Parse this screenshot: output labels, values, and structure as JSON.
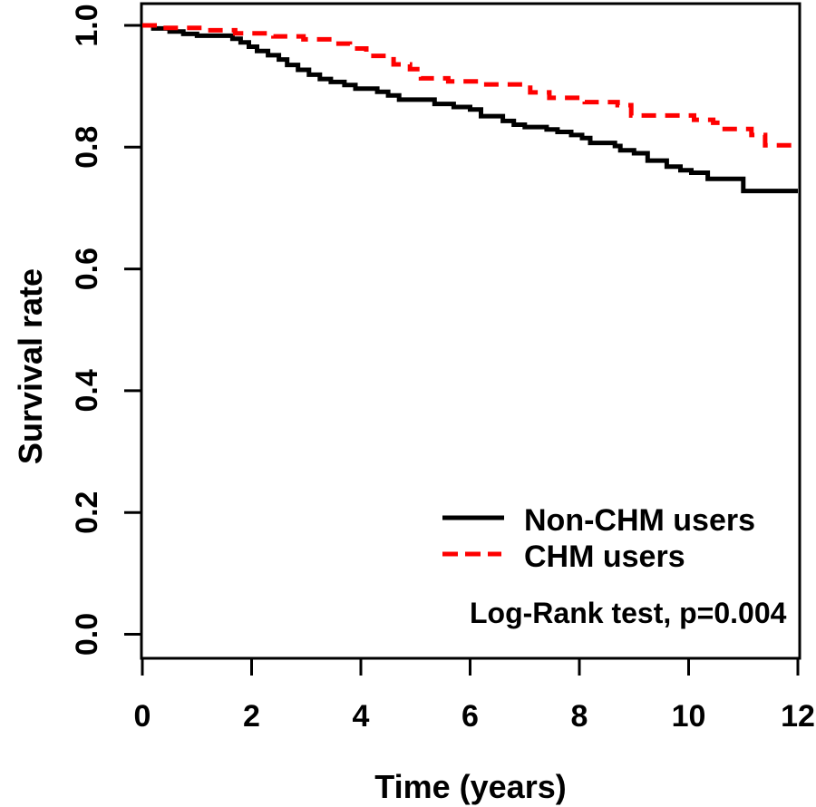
{
  "chart_data": {
    "type": "line",
    "variant": "kaplan_meier_step",
    "title": "",
    "xlabel": "Time (years)",
    "ylabel": "Survival rate",
    "xlim": [
      0,
      12
    ],
    "ylim": [
      0.0,
      1.0
    ],
    "x_ticks": [
      0,
      2,
      4,
      6,
      8,
      10,
      12
    ],
    "y_ticks": [
      0.0,
      0.2,
      0.4,
      0.6,
      0.8,
      1.0
    ],
    "y_tick_labels": [
      "0.0",
      "0.2",
      "0.4",
      "0.6",
      "0.8",
      "1.0"
    ],
    "grid": false,
    "legend_position": "inside-bottom-right",
    "annotation": "Log-Rank test, p=0.004",
    "series": [
      {
        "name": "Non-CHM users",
        "color": "#000000",
        "style": "solid",
        "end_time": 12,
        "steps": [
          [
            0,
            1.0
          ],
          [
            0.2,
            0.995
          ],
          [
            0.5,
            0.99
          ],
          [
            0.75,
            0.986
          ],
          [
            1.0,
            0.983
          ],
          [
            1.65,
            0.978
          ],
          [
            1.8,
            0.972
          ],
          [
            1.95,
            0.965
          ],
          [
            2.1,
            0.958
          ],
          [
            2.3,
            0.951
          ],
          [
            2.5,
            0.944
          ],
          [
            2.65,
            0.935
          ],
          [
            2.85,
            0.927
          ],
          [
            3.05,
            0.919
          ],
          [
            3.25,
            0.912
          ],
          [
            3.45,
            0.907
          ],
          [
            3.7,
            0.902
          ],
          [
            3.9,
            0.896
          ],
          [
            4.3,
            0.891
          ],
          [
            4.5,
            0.885
          ],
          [
            4.7,
            0.878
          ],
          [
            5.35,
            0.871
          ],
          [
            5.7,
            0.866
          ],
          [
            6.0,
            0.862
          ],
          [
            6.2,
            0.851
          ],
          [
            6.6,
            0.843
          ],
          [
            6.8,
            0.837
          ],
          [
            7.0,
            0.833
          ],
          [
            7.4,
            0.829
          ],
          [
            7.6,
            0.825
          ],
          [
            7.85,
            0.82
          ],
          [
            8.05,
            0.815
          ],
          [
            8.2,
            0.807
          ],
          [
            8.65,
            0.802
          ],
          [
            8.75,
            0.795
          ],
          [
            9.0,
            0.79
          ],
          [
            9.25,
            0.778
          ],
          [
            9.6,
            0.768
          ],
          [
            9.85,
            0.762
          ],
          [
            10.05,
            0.758
          ],
          [
            10.35,
            0.748
          ],
          [
            11.0,
            0.728
          ]
        ]
      },
      {
        "name": "CHM users",
        "color": "#fe0000",
        "style": "dashed",
        "end_time": 12,
        "steps": [
          [
            0,
            1.0
          ],
          [
            0.3,
            0.996
          ],
          [
            1.2,
            0.992
          ],
          [
            1.7,
            0.987
          ],
          [
            2.4,
            0.982
          ],
          [
            2.95,
            0.977
          ],
          [
            3.5,
            0.97
          ],
          [
            3.8,
            0.962
          ],
          [
            4.1,
            0.95
          ],
          [
            4.6,
            0.936
          ],
          [
            4.9,
            0.928
          ],
          [
            5.1,
            0.913
          ],
          [
            5.6,
            0.908
          ],
          [
            6.2,
            0.903
          ],
          [
            7.1,
            0.89
          ],
          [
            7.45,
            0.881
          ],
          [
            8.1,
            0.874
          ],
          [
            8.7,
            0.869
          ],
          [
            8.95,
            0.852
          ],
          [
            10.1,
            0.845
          ],
          [
            10.45,
            0.84
          ],
          [
            10.6,
            0.83
          ],
          [
            11.15,
            0.82
          ],
          [
            11.4,
            0.803
          ]
        ]
      }
    ]
  },
  "colors": {
    "background": "#ffffff",
    "axis": "#000000",
    "non_chm_curve": "#000000",
    "chm_curve": "#fe0000"
  }
}
